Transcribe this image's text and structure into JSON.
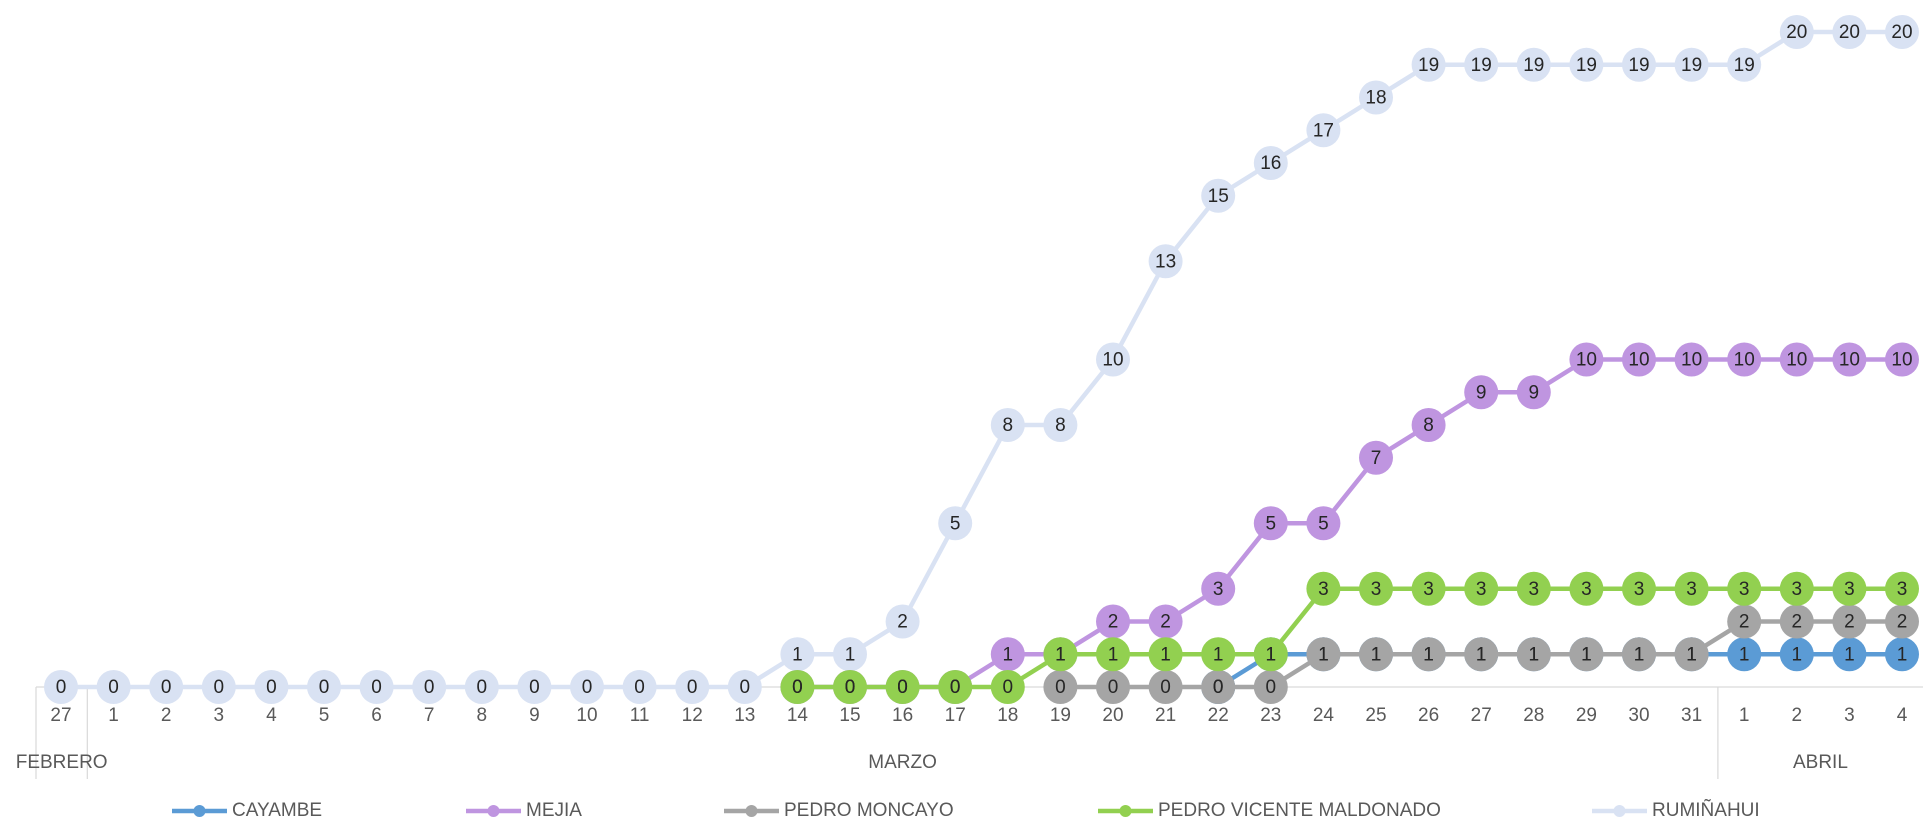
{
  "chart_data": {
    "type": "line",
    "categories": [
      "27",
      "1",
      "2",
      "3",
      "4",
      "5",
      "6",
      "7",
      "8",
      "9",
      "10",
      "11",
      "12",
      "13",
      "14",
      "15",
      "16",
      "17",
      "18",
      "19",
      "20",
      "21",
      "22",
      "23",
      "24",
      "25",
      "26",
      "27",
      "28",
      "29",
      "30",
      "31",
      "1",
      "2",
      "3",
      "4"
    ],
    "category_groups": [
      {
        "label": "FEBRERO",
        "span": 1
      },
      {
        "label": "MARZO",
        "span": 31
      },
      {
        "label": "ABRIL",
        "span": 4
      }
    ],
    "legend": "bottom",
    "data_labels": true,
    "series": [
      {
        "name": "RUMIÑAHUI",
        "color": "#d9e2f3",
        "values": [
          0,
          0,
          0,
          0,
          0,
          0,
          0,
          0,
          0,
          0,
          0,
          0,
          0,
          0,
          1,
          1,
          2,
          5,
          8,
          8,
          10,
          13,
          15,
          16,
          17,
          18,
          19,
          19,
          19,
          19,
          19,
          19,
          19,
          20,
          20,
          20
        ]
      },
      {
        "name": "CAYAMBE",
        "color": "#5b9bd5",
        "values": [
          null,
          null,
          null,
          null,
          null,
          null,
          null,
          null,
          null,
          null,
          null,
          null,
          null,
          null,
          null,
          null,
          null,
          null,
          null,
          null,
          null,
          null,
          0,
          1,
          1,
          1,
          1,
          1,
          1,
          1,
          1,
          1,
          1,
          1,
          1,
          1
        ]
      },
      {
        "name": "MEJIA",
        "color": "#bf95e0",
        "values": [
          null,
          null,
          null,
          null,
          null,
          null,
          null,
          null,
          null,
          null,
          null,
          null,
          null,
          null,
          0,
          0,
          0,
          0,
          1,
          1,
          2,
          2,
          3,
          5,
          5,
          7,
          8,
          9,
          9,
          10,
          10,
          10,
          10,
          10,
          10,
          10
        ]
      },
      {
        "name": "PEDRO MONCAYO",
        "color": "#a5a5a5",
        "values": [
          null,
          null,
          null,
          null,
          null,
          null,
          null,
          null,
          null,
          null,
          null,
          null,
          null,
          null,
          null,
          null,
          null,
          null,
          null,
          0,
          0,
          0,
          0,
          0,
          1,
          1,
          1,
          1,
          1,
          1,
          1,
          1,
          2,
          2,
          2,
          2
        ]
      },
      {
        "name": "PEDRO VICENTE MALDONADO",
        "color": "#92d050",
        "values": [
          null,
          null,
          null,
          null,
          null,
          null,
          null,
          null,
          null,
          null,
          null,
          null,
          null,
          null,
          0,
          0,
          0,
          0,
          0,
          1,
          1,
          1,
          1,
          1,
          3,
          3,
          3,
          3,
          3,
          3,
          3,
          3,
          3,
          3,
          3,
          3
        ]
      }
    ]
  }
}
